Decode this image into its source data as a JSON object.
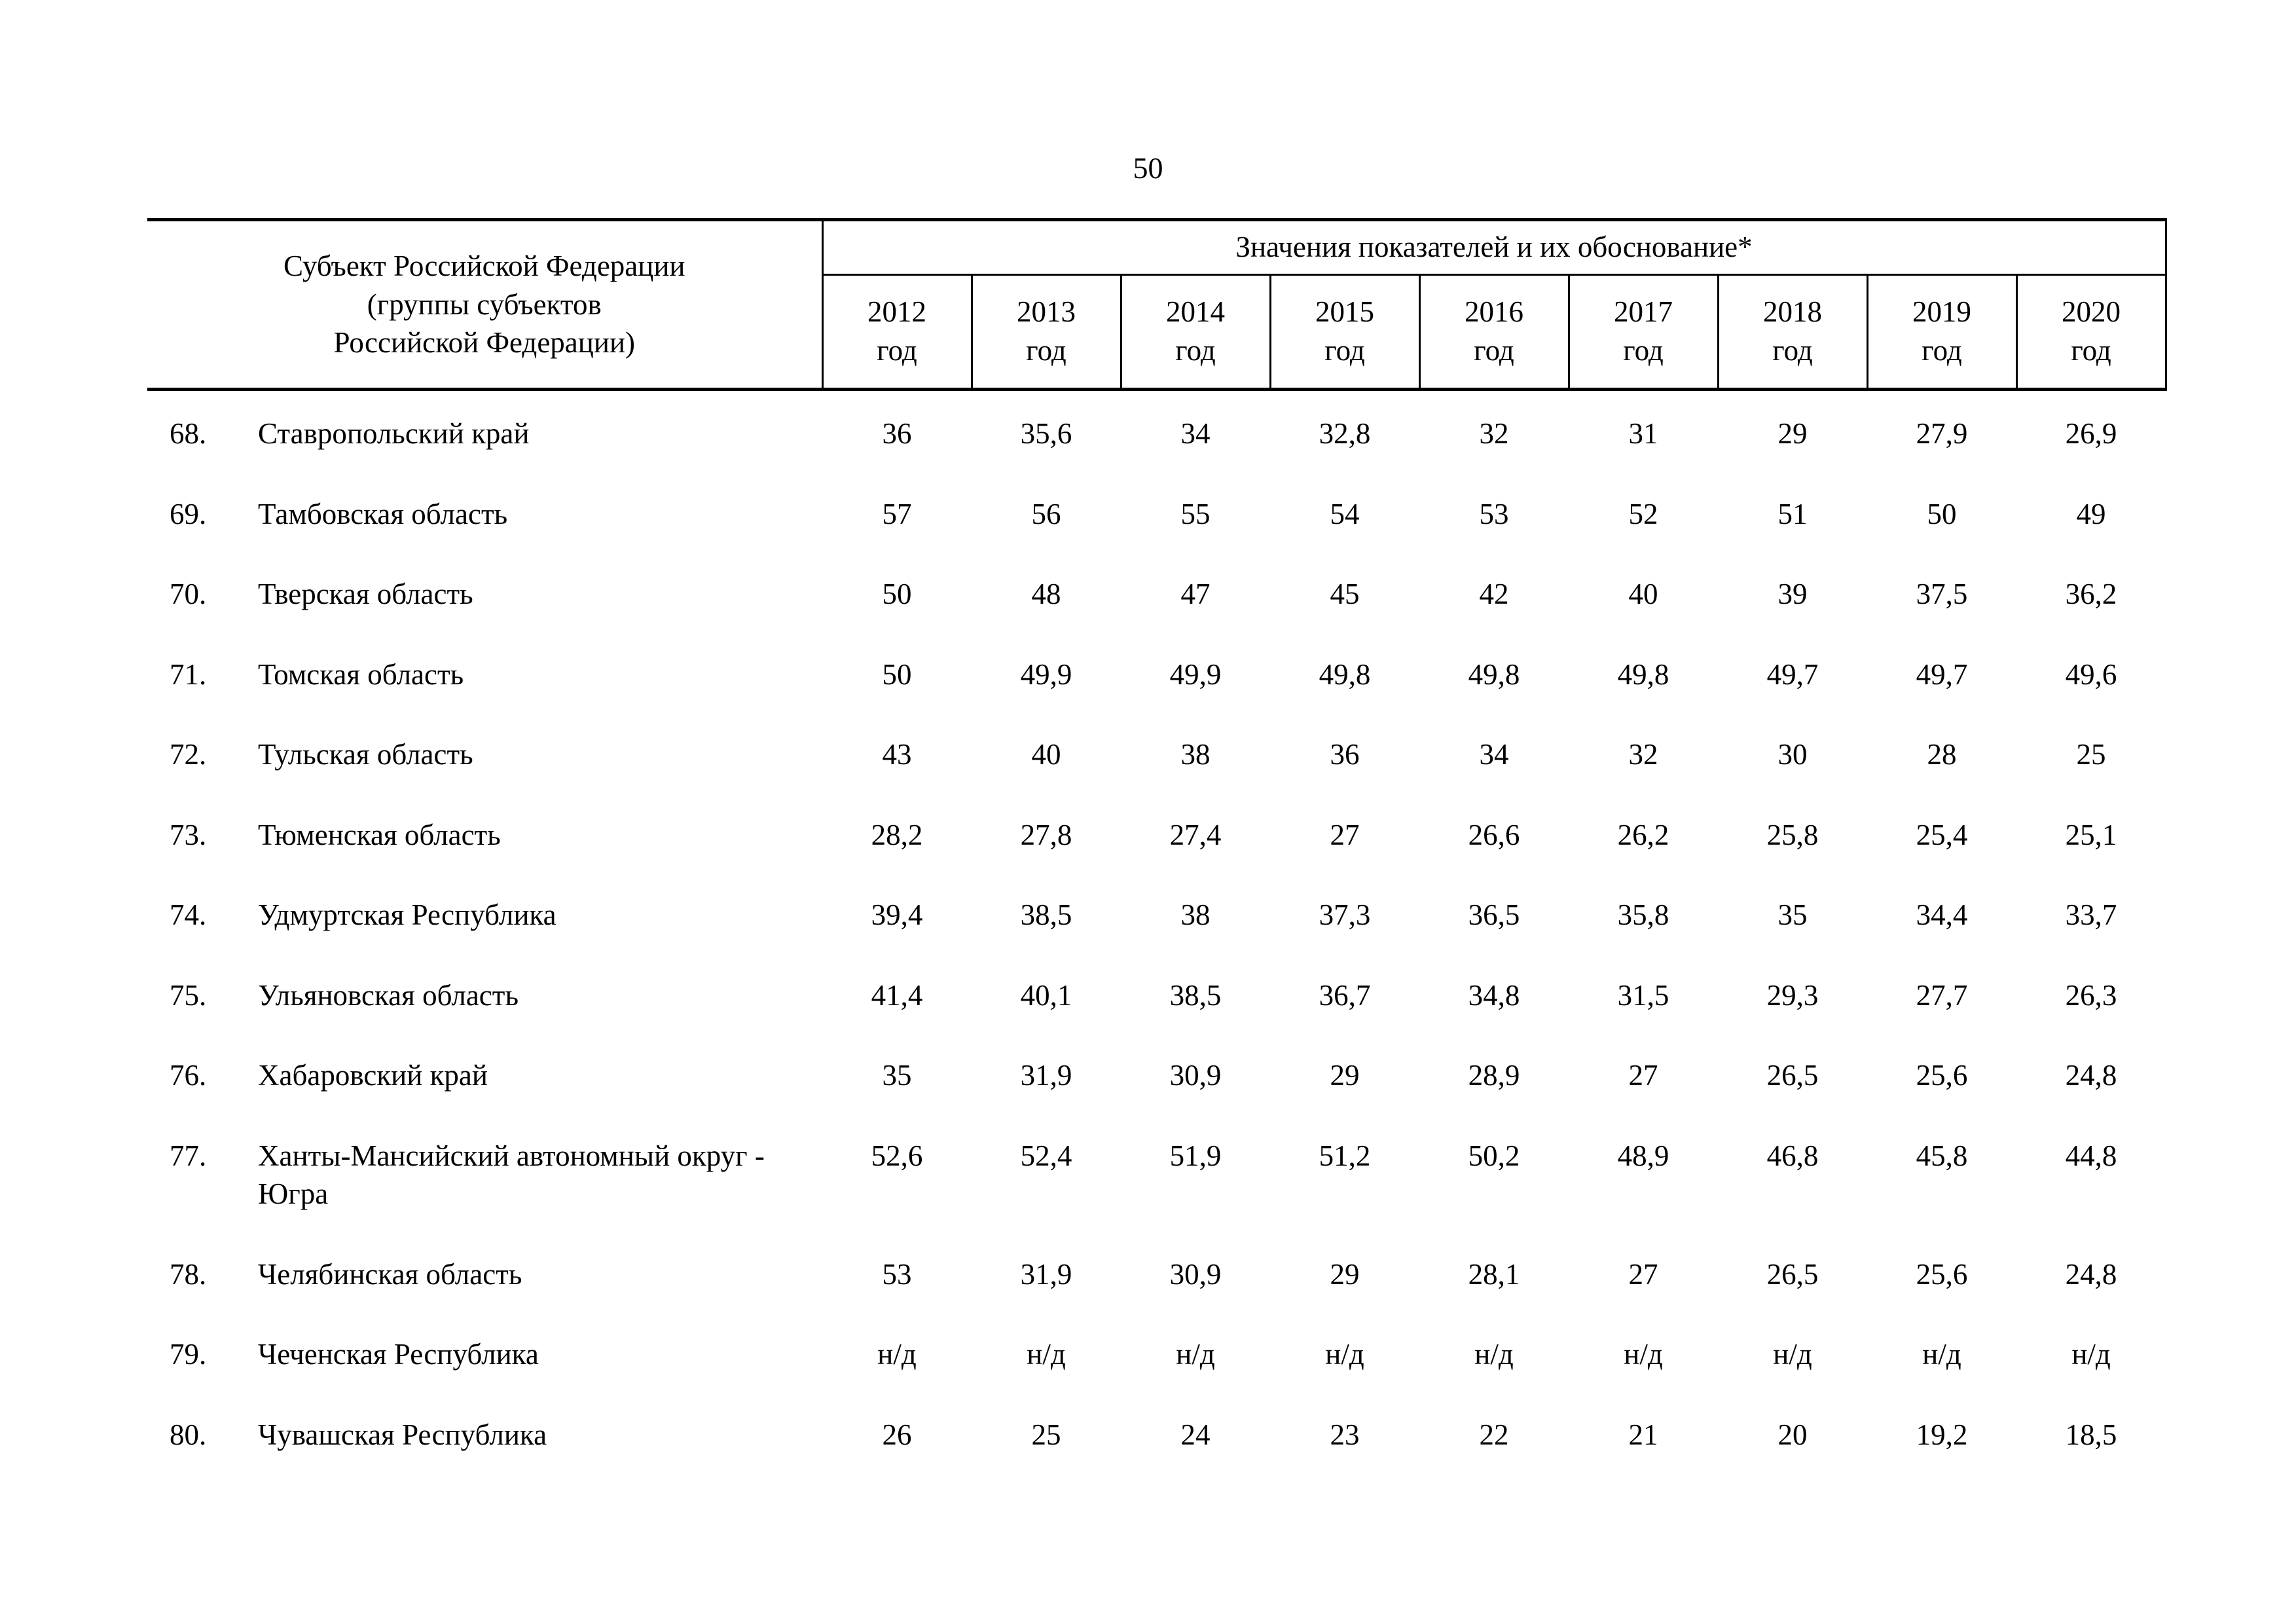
{
  "page_number": "50",
  "table": {
    "subject_header_lines": [
      "Субъект Российской Федерации",
      "(группы субъектов",
      "Российской Федерации)"
    ],
    "values_header": "Значения показателей и их обоснование*",
    "years": [
      {
        "year": "2012",
        "unit": "год"
      },
      {
        "year": "2013",
        "unit": "год"
      },
      {
        "year": "2014",
        "unit": "год"
      },
      {
        "year": "2015",
        "unit": "год"
      },
      {
        "year": "2016",
        "unit": "год"
      },
      {
        "year": "2017",
        "unit": "год"
      },
      {
        "year": "2018",
        "unit": "год"
      },
      {
        "year": "2019",
        "unit": "год"
      },
      {
        "year": "2020",
        "unit": "год"
      }
    ],
    "rows": [
      {
        "num": "68.",
        "name": "Ставропольский край",
        "values": [
          "36",
          "35,6",
          "34",
          "32,8",
          "32",
          "31",
          "29",
          "27,9",
          "26,9"
        ]
      },
      {
        "num": "69.",
        "name": "Тамбовская область",
        "values": [
          "57",
          "56",
          "55",
          "54",
          "53",
          "52",
          "51",
          "50",
          "49"
        ]
      },
      {
        "num": "70.",
        "name": "Тверская область",
        "values": [
          "50",
          "48",
          "47",
          "45",
          "42",
          "40",
          "39",
          "37,5",
          "36,2"
        ]
      },
      {
        "num": "71.",
        "name": "Томская область",
        "values": [
          "50",
          "49,9",
          "49,9",
          "49,8",
          "49,8",
          "49,8",
          "49,7",
          "49,7",
          "49,6"
        ]
      },
      {
        "num": "72.",
        "name": "Тульская область",
        "values": [
          "43",
          "40",
          "38",
          "36",
          "34",
          "32",
          "30",
          "28",
          "25"
        ]
      },
      {
        "num": "73.",
        "name": "Тюменская область",
        "values": [
          "28,2",
          "27,8",
          "27,4",
          "27",
          "26,6",
          "26,2",
          "25,8",
          "25,4",
          "25,1"
        ]
      },
      {
        "num": "74.",
        "name": "Удмуртская Республика",
        "values": [
          "39,4",
          "38,5",
          "38",
          "37,3",
          "36,5",
          "35,8",
          "35",
          "34,4",
          "33,7"
        ]
      },
      {
        "num": "75.",
        "name": "Ульяновская область",
        "values": [
          "41,4",
          "40,1",
          "38,5",
          "36,7",
          "34,8",
          "31,5",
          "29,3",
          "27,7",
          "26,3"
        ]
      },
      {
        "num": "76.",
        "name": "Хабаровский край",
        "values": [
          "35",
          "31,9",
          "30,9",
          "29",
          "28,9",
          "27",
          "26,5",
          "25,6",
          "24,8"
        ]
      },
      {
        "num": "77.",
        "name": "Ханты-Мансийский автономный округ - Югра",
        "values": [
          "52,6",
          "52,4",
          "51,9",
          "51,2",
          "50,2",
          "48,9",
          "46,8",
          "45,8",
          "44,8"
        ]
      },
      {
        "num": "78.",
        "name": "Челябинская область",
        "values": [
          "53",
          "31,9",
          "30,9",
          "29",
          "28,1",
          "27",
          "26,5",
          "25,6",
          "24,8"
        ]
      },
      {
        "num": "79.",
        "name": "Чеченская Республика",
        "values": [
          "н/д",
          "н/д",
          "н/д",
          "н/д",
          "н/д",
          "н/д",
          "н/д",
          "н/д",
          "н/д"
        ]
      },
      {
        "num": "80.",
        "name": "Чувашская Республика",
        "values": [
          "26",
          "25",
          "24",
          "23",
          "22",
          "21",
          "20",
          "19,2",
          "18,5"
        ]
      }
    ]
  }
}
